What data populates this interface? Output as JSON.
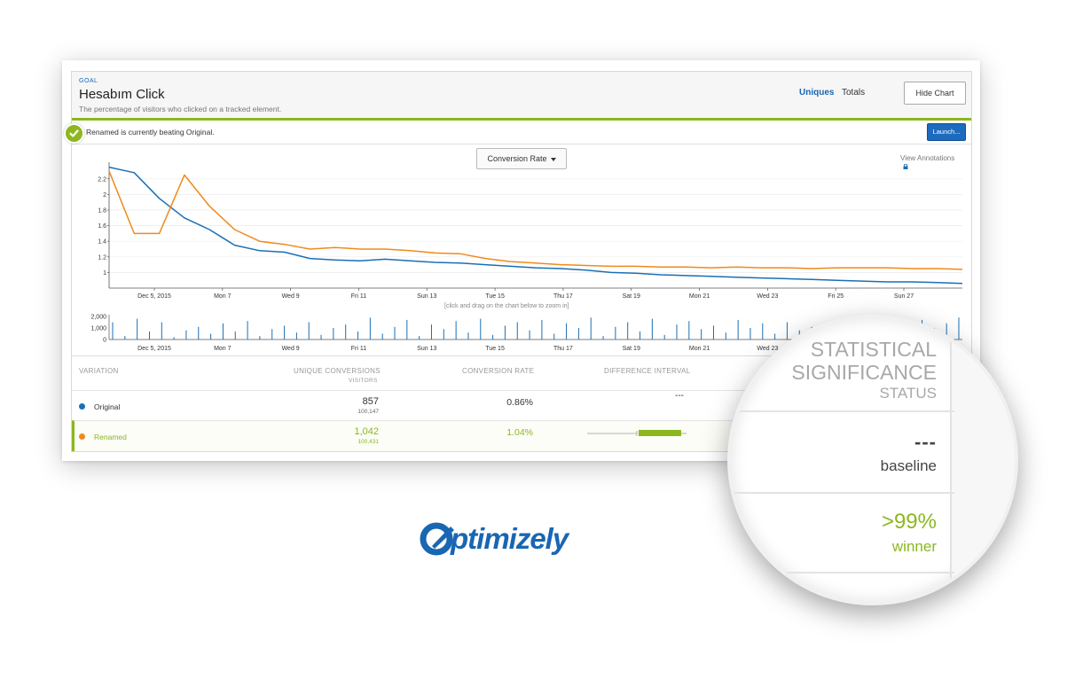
{
  "goal": {
    "tag": "GOAL",
    "title": "Hesabım Click",
    "description": "The percentage of visitors who clicked on a tracked element."
  },
  "tabs": {
    "uniques": "Uniques",
    "totals": "Totals"
  },
  "buttons": {
    "hide_chart": "Hide Chart",
    "launch": "Launch..."
  },
  "notice": {
    "text": "Renamed is currently beating Original."
  },
  "chart": {
    "metric_dropdown": "Conversion Rate",
    "view_annotations": "View Annotations",
    "zoom_hint": "[click and drag on the chart below to zoom in]"
  },
  "chart_data": {
    "type": "line",
    "x_labels": [
      "Dec 5, 2015",
      "Mon 7",
      "Wed 9",
      "Fri 11",
      "Sun 13",
      "Tue 15",
      "Thu 17",
      "Sat 19",
      "Mon 21",
      "Wed 23",
      "Fri 25",
      "Sun 27"
    ],
    "ylim": [
      0.8,
      2.3
    ],
    "y_ticks": [
      1,
      1.2,
      1.4,
      1.6,
      1.8,
      2,
      2.2
    ],
    "series": [
      {
        "name": "Original",
        "color": "#1a6fb5",
        "values": [
          2.35,
          2.28,
          1.95,
          1.7,
          1.55,
          1.35,
          1.28,
          1.26,
          1.18,
          1.16,
          1.15,
          1.17,
          1.15,
          1.13,
          1.12,
          1.1,
          1.08,
          1.06,
          1.05,
          1.03,
          1.0,
          0.99,
          0.97,
          0.96,
          0.95,
          0.94,
          0.93,
          0.92,
          0.91,
          0.9,
          0.89,
          0.88,
          0.88,
          0.87,
          0.86
        ]
      },
      {
        "name": "Renamed",
        "color": "#f08a1c",
        "values": [
          2.3,
          1.5,
          1.5,
          2.25,
          1.85,
          1.55,
          1.4,
          1.36,
          1.3,
          1.32,
          1.3,
          1.3,
          1.28,
          1.25,
          1.24,
          1.18,
          1.14,
          1.12,
          1.1,
          1.09,
          1.08,
          1.08,
          1.07,
          1.07,
          1.06,
          1.07,
          1.06,
          1.06,
          1.05,
          1.06,
          1.06,
          1.06,
          1.05,
          1.05,
          1.04
        ]
      }
    ],
    "visitors_bar": {
      "y_ticks": [
        "2,000",
        "1,000",
        "0"
      ],
      "ylim": [
        0,
        2000
      ],
      "values": [
        1500,
        300,
        1800,
        700,
        1500,
        200,
        800,
        1100,
        500,
        1400,
        700,
        1600,
        300,
        900,
        1200,
        600,
        1500,
        400,
        1000,
        1300,
        700,
        1900,
        500,
        1100,
        1700,
        300,
        1300,
        900,
        1600,
        600,
        1800,
        400,
        1200,
        1500,
        800,
        1700,
        500,
        1400,
        1000,
        1900,
        300,
        1100,
        1500,
        700,
        1800,
        400,
        1300,
        1600,
        900,
        1200,
        600,
        1700,
        1000,
        1400,
        500,
        1500,
        800,
        1100,
        1300,
        700,
        1600,
        400,
        1200,
        900,
        1500,
        600,
        1700,
        1000,
        1400,
        1900
      ]
    }
  },
  "table": {
    "headers": {
      "variation": "VARIATION",
      "unique_conversions": "UNIQUE CONVERSIONS",
      "visitors": "VISITORS",
      "conversion_rate": "CONVERSION RATE",
      "difference_interval": "DIFFERENCE INTERVAL"
    },
    "rows": [
      {
        "name": "Original",
        "color": "#1a6fb5",
        "conversions": "857",
        "visitors": "100,147",
        "rate": "0.86%",
        "interval": "---"
      },
      {
        "name": "Renamed",
        "color": "#f08a1c",
        "conversions": "1,042",
        "visitors": "100,431",
        "rate": "1.04%"
      }
    ]
  },
  "magnifier": {
    "header_line1": "STATISTICAL",
    "header_line2": "SIGNIFICANCE",
    "header_line3": "STATUS",
    "baseline_value": "---",
    "baseline_label": "baseline",
    "winner_value": ">99%",
    "winner_label": "winner"
  },
  "logo": {
    "text": "Optimizely",
    "color": "#1966b2"
  }
}
